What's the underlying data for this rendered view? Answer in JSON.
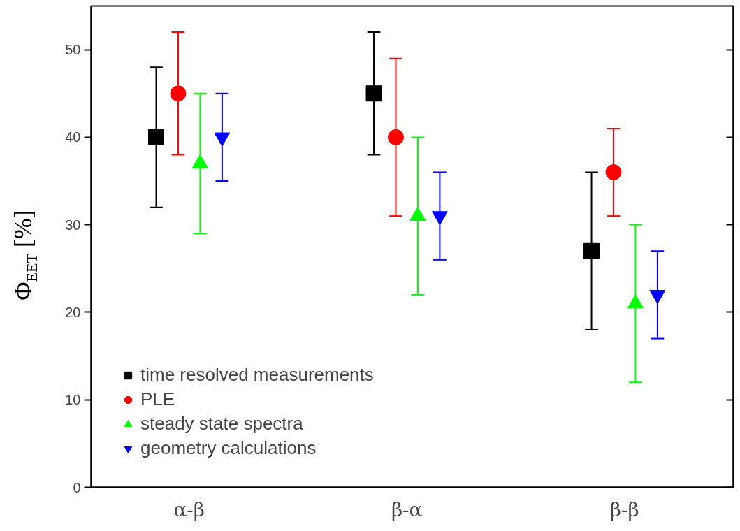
{
  "chart_data": {
    "type": "scatter",
    "ylabel": "Φ$_{EET}$ [%]",
    "categories": [
      "α-β",
      "β-α",
      "β-β"
    ],
    "ylim": [
      0,
      55
    ],
    "yticks": [
      0,
      10,
      20,
      30,
      40,
      50
    ],
    "grid": false,
    "legend": "bottom left",
    "series": [
      {
        "name": "time resolved measurements",
        "color": "#000000",
        "marker": "square",
        "values": [
          40,
          45,
          27
        ],
        "errors": [
          [
            32,
            48
          ],
          [
            38,
            52
          ],
          [
            18,
            36
          ]
        ]
      },
      {
        "name": "PLE",
        "color": "#ff0000",
        "marker": "circle",
        "values": [
          45,
          40,
          36
        ],
        "errors": [
          [
            38,
            52
          ],
          [
            31,
            49
          ],
          [
            31,
            41
          ]
        ]
      },
      {
        "name": "steady state spectra",
        "color": "#00ff00",
        "marker": "triangle",
        "values": [
          37,
          31,
          21
        ],
        "errors": [
          [
            29,
            45
          ],
          [
            22,
            40
          ],
          [
            12,
            30
          ]
        ]
      },
      {
        "name": "geometry calculations",
        "color": "#0000ff",
        "values": [
          40,
          31,
          22
        ],
        "errors": [
          [
            35,
            45
          ],
          [
            26,
            36
          ],
          [
            17,
            27
          ]
        ]
      }
    ]
  }
}
